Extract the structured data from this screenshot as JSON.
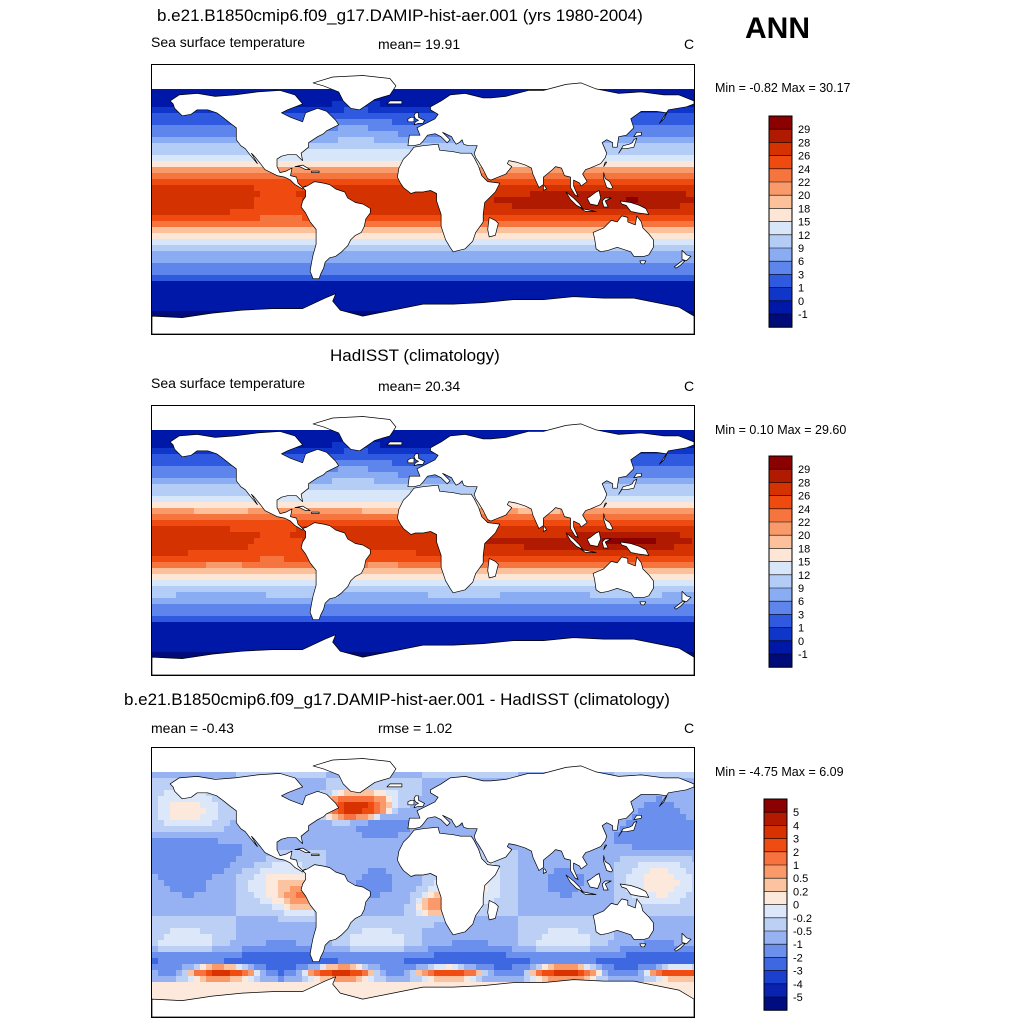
{
  "season": "ANN",
  "panels": [
    {
      "title": "b.e21.B1850cmip6.f09_g17.DAMIP-hist-aer.001 (yrs 1980-2004)",
      "left_label": "Sea surface temperature",
      "center_label": "mean=  19.91",
      "units": "C",
      "minmax": "Min =  -0.82 Max =  30.17",
      "colorbar_labels": [
        "29",
        "28",
        "26",
        "24",
        "22",
        "20",
        "18",
        "15",
        "12",
        "9",
        "6",
        "3",
        "1",
        "0",
        "-1"
      ]
    },
    {
      "title": "HadISST (climatology)",
      "left_label": "Sea surface temperature",
      "center_label": "mean=  20.34",
      "units": "C",
      "minmax": "Min =   0.10 Max =  29.60",
      "colorbar_labels": [
        "29",
        "28",
        "26",
        "24",
        "22",
        "20",
        "18",
        "15",
        "12",
        "9",
        "6",
        "3",
        "1",
        "0",
        "-1"
      ]
    },
    {
      "title": "b.e21.B1850cmip6.f09_g17.DAMIP-hist-aer.001 - HadISST (climatology)",
      "left_label": "mean =  -0.43",
      "center_label": "rmse =    1.02",
      "units": "C",
      "minmax": "Min =  -4.75 Max =   6.09",
      "colorbar_labels": [
        "5",
        "4",
        "3",
        "2",
        "1",
        "0.5",
        "0.2",
        "0",
        "-0.2",
        "-0.5",
        "-1",
        "-2",
        "-3",
        "-4",
        "-5"
      ]
    }
  ],
  "colors": {
    "sst_palette": [
      "#8b0000",
      "#b01a00",
      "#d43200",
      "#ef4a10",
      "#f6743e",
      "#f99a6a",
      "#fcc09a",
      "#fde6d6",
      "#d8e6fa",
      "#b4cdf7",
      "#8aacf2",
      "#5d85eb",
      "#2f5ae0",
      "#0f35c9",
      "#0018a8",
      "#000b7a"
    ],
    "diff_palette": [
      "#8b0000",
      "#b31800",
      "#d83200",
      "#f04c12",
      "#f7723e",
      "#fa9a6a",
      "#fcc3a0",
      "#fde9dc",
      "#dce8fa",
      "#bcd0f6",
      "#96b2f2",
      "#6a8fec",
      "#3e67e2",
      "#1b40cf",
      "#0922b0",
      "#000d80"
    ],
    "land": "#ffffff",
    "coast": "#000000"
  }
}
